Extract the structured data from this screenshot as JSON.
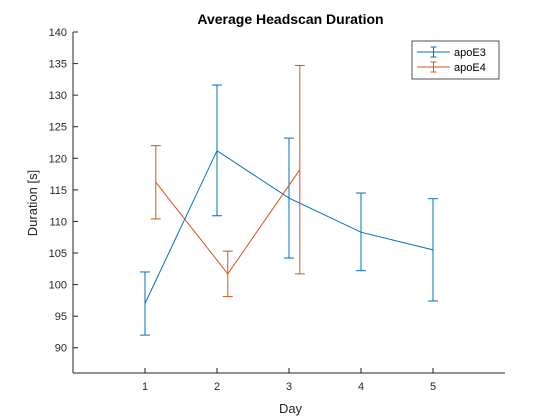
{
  "chart_data": {
    "type": "line",
    "title": "Average Headscan Duration",
    "xlabel": "Day",
    "ylabel": "Duration [s]",
    "xlim": [
      0,
      6
    ],
    "ylim": [
      86,
      140
    ],
    "xticks": [
      1,
      2,
      3,
      4,
      5
    ],
    "yticks": [
      90,
      95,
      100,
      105,
      110,
      115,
      120,
      125,
      130,
      135,
      140
    ],
    "grid": false,
    "legend_position": "top-right",
    "error_bars": true,
    "series": [
      {
        "name": "apoE3",
        "color": "#0072BD",
        "x": [
          1,
          2,
          3,
          4,
          5
        ],
        "values": [
          97.0,
          121.2,
          113.7,
          108.3,
          105.5
        ],
        "err_low": [
          92.0,
          110.9,
          104.2,
          102.2,
          97.4
        ],
        "err_high": [
          102.0,
          131.6,
          123.2,
          114.5,
          113.6
        ]
      },
      {
        "name": "apoE4",
        "color": "#D95319",
        "x": [
          1.15,
          2.15,
          3.15
        ],
        "values": [
          116.2,
          101.7,
          118.2
        ],
        "err_low": [
          110.4,
          98.1,
          101.7
        ],
        "err_high": [
          122.0,
          105.3,
          134.7
        ]
      }
    ]
  }
}
